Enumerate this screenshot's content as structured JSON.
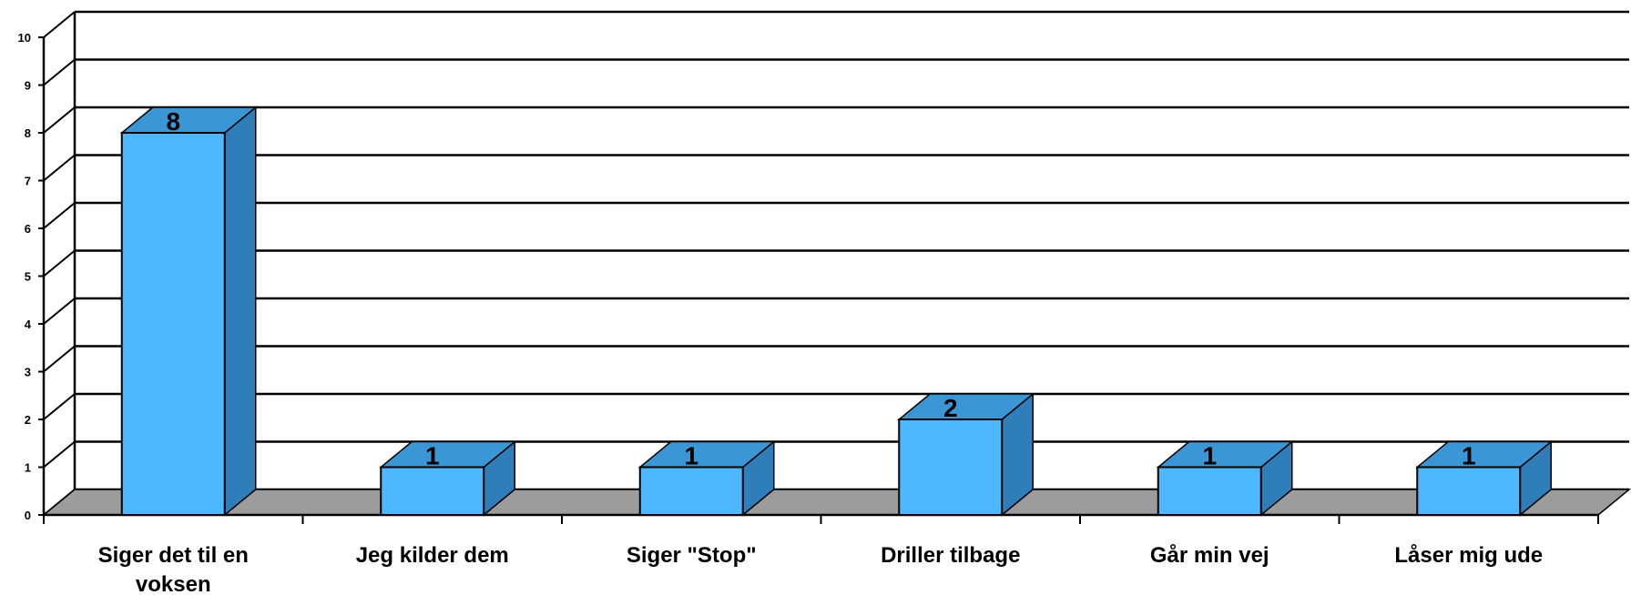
{
  "chart_data": {
    "type": "bar",
    "style": "3d",
    "categories": [
      [
        "Siger det til en",
        "voksen"
      ],
      [
        "Jeg kilder dem"
      ],
      [
        "Siger \"Stop\""
      ],
      [
        "Driller tilbage"
      ],
      [
        "Går min vej"
      ],
      [
        "Låser mig ude"
      ]
    ],
    "values": [
      8,
      1,
      1,
      2,
      1,
      1
    ],
    "data_labels": [
      "8",
      "1",
      "1",
      "2",
      "1",
      "1"
    ],
    "yticks": [
      "0",
      "1",
      "2",
      "3",
      "4",
      "5",
      "6",
      "7",
      "8",
      "9",
      "10"
    ],
    "ylim": [
      0,
      10
    ],
    "grid": true,
    "legend": "none",
    "colors": {
      "bar_front": "#4db8ff",
      "bar_top": "#3a96d4",
      "bar_side": "#2f7db9",
      "floor": "#9c9c9c",
      "grid": "#000000"
    }
  }
}
